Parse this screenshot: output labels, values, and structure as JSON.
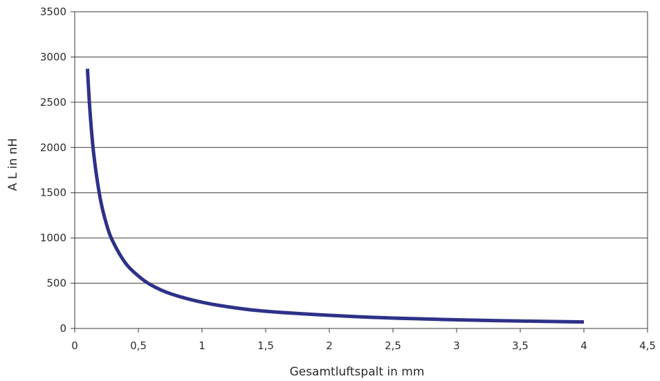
{
  "chart_data": {
    "type": "line",
    "title": "",
    "xlabel": "Gesamtluftspalt in mm",
    "ylabel": "A L in nH",
    "xlim": [
      0,
      4.5
    ],
    "ylim": [
      0,
      3500
    ],
    "x_ticks": [
      0,
      0.5,
      1,
      1.5,
      2,
      2.5,
      3,
      3.5,
      4,
      4.5
    ],
    "x_tick_labels": [
      "0",
      "0,5",
      "1",
      "1,5",
      "2",
      "2,5",
      "3",
      "3,5",
      "4",
      "4,5"
    ],
    "y_ticks": [
      0,
      500,
      1000,
      1500,
      2000,
      2500,
      3000,
      3500
    ],
    "y_tick_labels": [
      "0",
      "500",
      "1000",
      "1500",
      "2000",
      "2500",
      "3000",
      "3500"
    ],
    "grid": "horizontal",
    "series": [
      {
        "color": "#2e3188",
        "x": [
          0.1,
          0.12,
          0.15,
          0.2,
          0.25,
          0.3,
          0.4,
          0.5,
          0.6,
          0.75,
          1.0,
          1.25,
          1.5,
          2.0,
          2.5,
          3.0,
          3.5,
          4.0
        ],
        "y": [
          2870,
          2400,
          1920,
          1440,
          1150,
          960,
          720,
          580,
          480,
          385,
          290,
          230,
          190,
          145,
          115,
          96,
          82,
          72
        ]
      }
    ]
  }
}
